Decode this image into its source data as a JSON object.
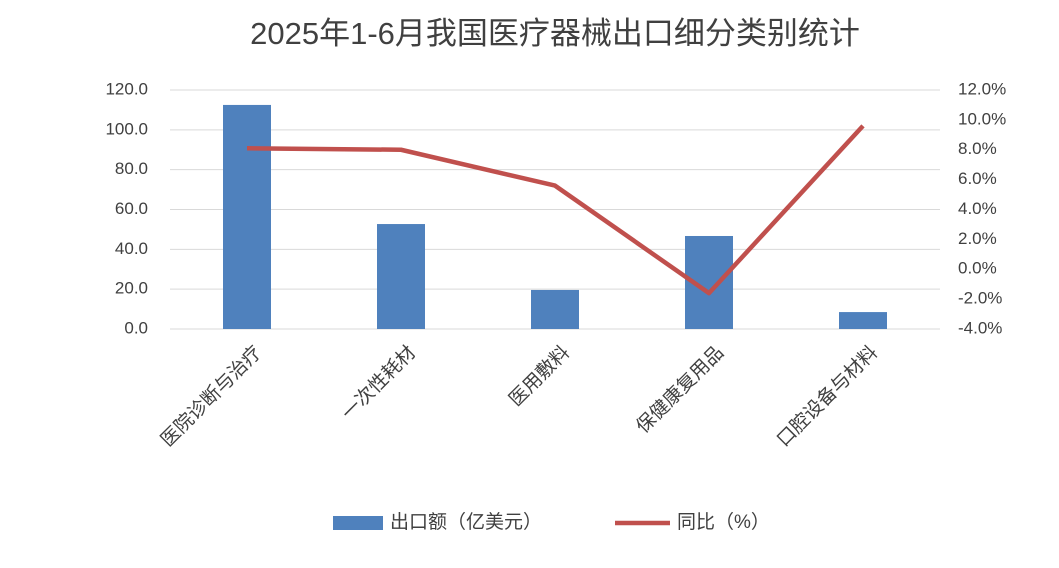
{
  "chart_data": {
    "type": "combo",
    "title": "2025年1-6月我国医疗器械出口细分类别统计",
    "categories": [
      "医院诊断与治疗",
      "一次性耗材",
      "医用敷料",
      "保健康复用品",
      "口腔设备与材料"
    ],
    "series": [
      {
        "name": "出口额（亿美元）",
        "type": "bar",
        "color": "#4f81bd",
        "values": [
          112.5,
          52.7,
          19.6,
          46.7,
          8.5
        ]
      },
      {
        "name": "同比（%）",
        "type": "line",
        "axis": "y2",
        "color": "#c0504d",
        "values": [
          8.1,
          8.0,
          5.6,
          -1.6,
          9.6
        ]
      }
    ],
    "ylim": [
      0,
      120
    ],
    "yticks": [
      {
        "value": 0,
        "label": "0.0"
      },
      {
        "value": 20,
        "label": "20.0"
      },
      {
        "value": 40,
        "label": "40.0"
      },
      {
        "value": 60,
        "label": "60.0"
      },
      {
        "value": 80,
        "label": "80.0"
      },
      {
        "value": 100,
        "label": "100.0"
      },
      {
        "value": 120,
        "label": "120.0"
      }
    ],
    "y2lim": [
      -4,
      12
    ],
    "y2ticks": [
      {
        "value": -4,
        "label": "-4.0%"
      },
      {
        "value": -2,
        "label": "-2.0%"
      },
      {
        "value": 0,
        "label": "0.0%"
      },
      {
        "value": 2,
        "label": "2.0%"
      },
      {
        "value": 4,
        "label": "4.0%"
      },
      {
        "value": 6,
        "label": "6.0%"
      },
      {
        "value": 8,
        "label": "8.0%"
      },
      {
        "value": 10,
        "label": "10.0%"
      },
      {
        "value": 12,
        "label": "12.0%"
      }
    ],
    "grid": true,
    "legend": "bottom"
  }
}
